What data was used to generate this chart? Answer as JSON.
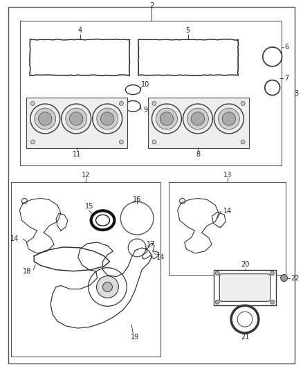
{
  "bg_color": "#ffffff",
  "lc": "#222222",
  "fs": 7,
  "fig_w": 4.38,
  "fig_h": 5.33,
  "dpi": 100
}
